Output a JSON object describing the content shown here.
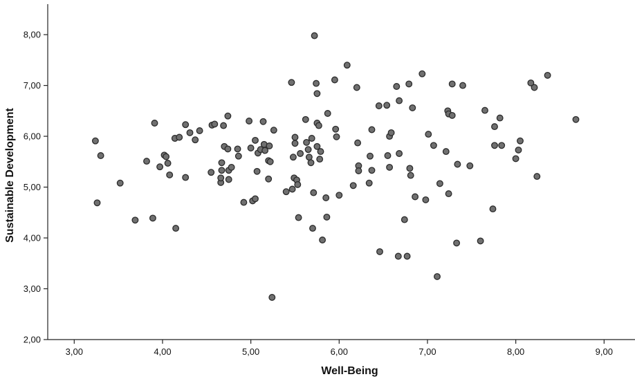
{
  "chart_data": {
    "type": "scatter",
    "title": "",
    "xlabel": "Well-Being",
    "ylabel": "Sustainable Development",
    "xlim": [
      2.7,
      9.35
    ],
    "ylim": [
      2.0,
      8.6
    ],
    "x_ticks": [
      3,
      4,
      5,
      6,
      7,
      8,
      9
    ],
    "y_ticks": [
      2,
      3,
      4,
      5,
      6,
      7,
      8
    ],
    "x_tick_labels": [
      "3,00",
      "4,00",
      "5,00",
      "6,00",
      "7,00",
      "8,00",
      "9,00"
    ],
    "y_tick_labels": [
      "2,00",
      "3,00",
      "4,00",
      "5,00",
      "6,00",
      "7,00",
      "8,00"
    ],
    "grid": false,
    "marker_color": "#707070",
    "marker_edge_color": "#2b2b2b",
    "points": [
      [
        3.24,
        5.91
      ],
      [
        3.3,
        5.62
      ],
      [
        3.26,
        4.69
      ],
      [
        3.52,
        5.08
      ],
      [
        3.69,
        4.35
      ],
      [
        3.82,
        5.51
      ],
      [
        3.89,
        4.39
      ],
      [
        3.91,
        6.26
      ],
      [
        3.97,
        5.4
      ],
      [
        4.02,
        5.63
      ],
      [
        4.04,
        5.6
      ],
      [
        4.06,
        5.47
      ],
      [
        4.08,
        5.24
      ],
      [
        4.14,
        5.96
      ],
      [
        4.15,
        4.19
      ],
      [
        4.19,
        5.98
      ],
      [
        4.26,
        6.23
      ],
      [
        4.26,
        5.19
      ],
      [
        4.31,
        6.07
      ],
      [
        4.37,
        5.93
      ],
      [
        4.42,
        6.11
      ],
      [
        4.55,
        5.29
      ],
      [
        4.56,
        6.22
      ],
      [
        4.59,
        6.24
      ],
      [
        4.66,
        5.09
      ],
      [
        4.66,
        5.18
      ],
      [
        4.67,
        5.33
      ],
      [
        4.67,
        5.48
      ],
      [
        4.69,
        6.21
      ],
      [
        4.7,
        5.8
      ],
      [
        4.74,
        6.4
      ],
      [
        4.74,
        5.75
      ],
      [
        4.75,
        5.15
      ],
      [
        4.75,
        5.33
      ],
      [
        4.78,
        5.39
      ],
      [
        4.85,
        5.75
      ],
      [
        4.86,
        5.61
      ],
      [
        4.92,
        4.7
      ],
      [
        4.98,
        6.3
      ],
      [
        5.0,
        5.77
      ],
      [
        5.02,
        4.73
      ],
      [
        5.05,
        4.77
      ],
      [
        5.05,
        5.92
      ],
      [
        5.07,
        5.31
      ],
      [
        5.08,
        5.67
      ],
      [
        5.11,
        5.74
      ],
      [
        5.14,
        6.29
      ],
      [
        5.15,
        5.84
      ],
      [
        5.16,
        5.72
      ],
      [
        5.2,
        5.52
      ],
      [
        5.2,
        5.16
      ],
      [
        5.21,
        5.81
      ],
      [
        5.22,
        5.5
      ],
      [
        5.24,
        2.83
      ],
      [
        5.26,
        6.12
      ],
      [
        5.4,
        4.91
      ],
      [
        5.46,
        7.06
      ],
      [
        5.47,
        4.96
      ],
      [
        5.48,
        5.59
      ],
      [
        5.49,
        5.18
      ],
      [
        5.5,
        5.98
      ],
      [
        5.5,
        5.86
      ],
      [
        5.52,
        5.14
      ],
      [
        5.53,
        5.05
      ],
      [
        5.54,
        4.4
      ],
      [
        5.56,
        5.66
      ],
      [
        5.62,
        6.33
      ],
      [
        5.63,
        5.88
      ],
      [
        5.65,
        5.74
      ],
      [
        5.66,
        5.59
      ],
      [
        5.68,
        5.48
      ],
      [
        5.69,
        5.96
      ],
      [
        5.7,
        4.19
      ],
      [
        5.71,
        4.89
      ],
      [
        5.72,
        7.98
      ],
      [
        5.74,
        7.04
      ],
      [
        5.75,
        6.84
      ],
      [
        5.75,
        6.26
      ],
      [
        5.75,
        5.8
      ],
      [
        5.77,
        6.21
      ],
      [
        5.78,
        5.55
      ],
      [
        5.79,
        5.7
      ],
      [
        5.81,
        3.96
      ],
      [
        5.85,
        4.79
      ],
      [
        5.86,
        4.41
      ],
      [
        5.87,
        6.45
      ],
      [
        5.95,
        7.11
      ],
      [
        5.96,
        6.14
      ],
      [
        5.97,
        5.99
      ],
      [
        6.0,
        4.84
      ],
      [
        6.09,
        7.4
      ],
      [
        6.16,
        5.03
      ],
      [
        6.2,
        6.96
      ],
      [
        6.21,
        5.87
      ],
      [
        6.22,
        5.42
      ],
      [
        6.22,
        5.32
      ],
      [
        6.34,
        5.08
      ],
      [
        6.35,
        5.61
      ],
      [
        6.37,
        5.33
      ],
      [
        6.37,
        6.13
      ],
      [
        6.45,
        6.6
      ],
      [
        6.46,
        3.73
      ],
      [
        6.54,
        6.61
      ],
      [
        6.55,
        5.62
      ],
      [
        6.57,
        6.0
      ],
      [
        6.57,
        5.39
      ],
      [
        6.59,
        6.07
      ],
      [
        6.65,
        6.98
      ],
      [
        6.67,
        3.64
      ],
      [
        6.68,
        6.7
      ],
      [
        6.68,
        5.66
      ],
      [
        6.74,
        4.36
      ],
      [
        6.77,
        3.64
      ],
      [
        6.79,
        7.03
      ],
      [
        6.8,
        5.37
      ],
      [
        6.81,
        5.23
      ],
      [
        6.83,
        6.56
      ],
      [
        6.86,
        4.81
      ],
      [
        6.94,
        7.23
      ],
      [
        6.98,
        4.75
      ],
      [
        7.01,
        6.04
      ],
      [
        7.07,
        5.82
      ],
      [
        7.11,
        3.24
      ],
      [
        7.14,
        5.07
      ],
      [
        7.21,
        5.7
      ],
      [
        7.23,
        6.5
      ],
      [
        7.24,
        6.44
      ],
      [
        7.24,
        4.87
      ],
      [
        7.28,
        6.41
      ],
      [
        7.28,
        7.03
      ],
      [
        7.33,
        3.9
      ],
      [
        7.34,
        5.45
      ],
      [
        7.4,
        7.0
      ],
      [
        7.48,
        5.42
      ],
      [
        7.6,
        3.94
      ],
      [
        7.65,
        6.51
      ],
      [
        7.74,
        4.57
      ],
      [
        7.76,
        6.19
      ],
      [
        7.76,
        5.82
      ],
      [
        7.82,
        6.36
      ],
      [
        7.84,
        5.82
      ],
      [
        8.0,
        5.56
      ],
      [
        8.03,
        5.73
      ],
      [
        8.05,
        5.91
      ],
      [
        8.17,
        7.05
      ],
      [
        8.21,
        6.96
      ],
      [
        8.24,
        5.21
      ],
      [
        8.36,
        7.2
      ],
      [
        8.68,
        6.33
      ]
    ]
  }
}
